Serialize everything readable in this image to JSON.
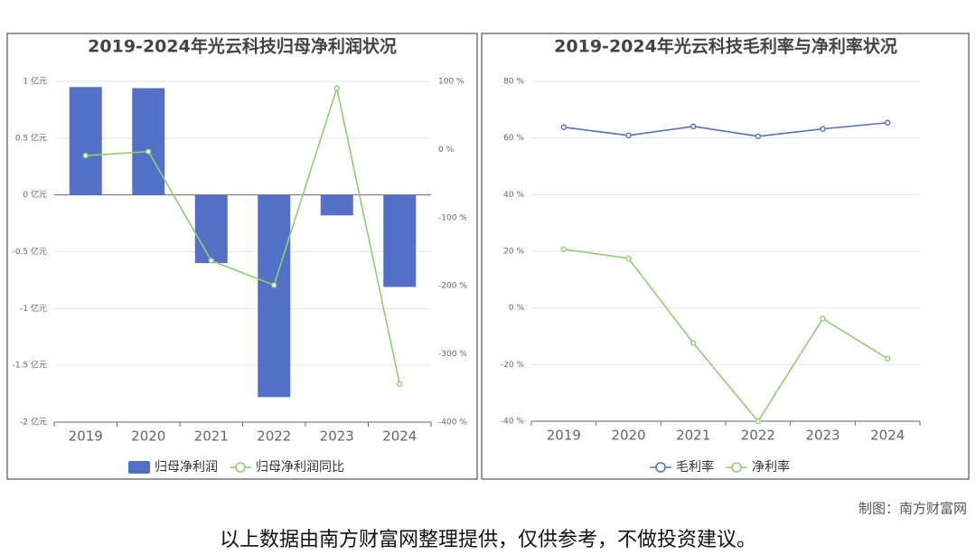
{
  "chart_data": [
    {
      "type": "bar",
      "title": "2019-2024年光云科技归母净利润状况",
      "categories": [
        "2019",
        "2020",
        "2021",
        "2022",
        "2023",
        "2024"
      ],
      "series": [
        {
          "name": "归母净利润",
          "type": "bar",
          "color": "#5470c6",
          "values": [
            0.95,
            0.94,
            -0.6,
            -1.78,
            -0.18,
            -0.81
          ]
        },
        {
          "name": "归母净利润同比",
          "type": "line",
          "axis": "y2",
          "color": "#91cc75",
          "values": [
            -9,
            -3,
            -163,
            -199,
            90,
            -344
          ]
        }
      ],
      "ylim": [
        -2,
        1
      ],
      "yticks": [
        {
          "value": 1,
          "label": "1 亿元"
        },
        {
          "value": 0.5,
          "label": "0.5 亿元"
        },
        {
          "value": 0,
          "label": "0 亿元"
        },
        {
          "value": -0.5,
          "label": "-0.5 亿元"
        },
        {
          "value": -1,
          "label": "-1 亿元"
        },
        {
          "value": -1.5,
          "label": "-1.5 亿元"
        },
        {
          "value": -2,
          "label": "-2 亿元"
        }
      ],
      "y2lim": [
        -400,
        100
      ],
      "y2ticks": [
        {
          "value": 100,
          "label": "100 %"
        },
        {
          "value": 0,
          "label": "0 %"
        },
        {
          "value": -100,
          "label": "-100 %"
        },
        {
          "value": -200,
          "label": "-200 %"
        },
        {
          "value": -300,
          "label": "-300 %"
        },
        {
          "value": -400,
          "label": "-400 %"
        }
      ],
      "grid": true
    },
    {
      "type": "line",
      "title": "2019-2024年光云科技毛利率与净利率状况",
      "categories": [
        "2019",
        "2020",
        "2021",
        "2022",
        "2023",
        "2024"
      ],
      "series": [
        {
          "name": "毛利率",
          "type": "line",
          "color": "#5470c6",
          "values": [
            63.8,
            60.9,
            64.1,
            60.6,
            63.2,
            65.4
          ]
        },
        {
          "name": "净利率",
          "type": "line",
          "color": "#91cc75",
          "values": [
            20.7,
            17.5,
            -12.4,
            -40,
            -3.8,
            -17.9
          ]
        }
      ],
      "ylim": [
        -40,
        80
      ],
      "yticks": [
        {
          "value": 80,
          "label": "80 %"
        },
        {
          "value": 60,
          "label": "60 %"
        },
        {
          "value": 40,
          "label": "40 %"
        },
        {
          "value": 20,
          "label": "20 %"
        },
        {
          "value": 0,
          "label": "0 %"
        },
        {
          "value": -20,
          "label": "-20 %"
        },
        {
          "value": -40,
          "label": "-40 %"
        }
      ],
      "grid": true
    }
  ],
  "credit": "制图：南方财富网",
  "disclaimer": "以上数据由南方财富网整理提供，仅供参考，不做投资建议。"
}
